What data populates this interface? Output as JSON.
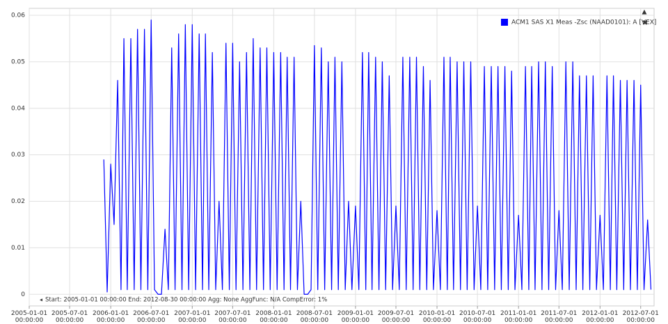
{
  "chart_data": {
    "type": "line",
    "xlim": [
      "2005-01-01 00:00:00",
      "2012-08-30 00:00:00"
    ],
    "ylim": [
      -0.0025,
      0.0615
    ],
    "yticks": [
      0,
      0.01,
      0.02,
      0.03,
      0.04,
      0.05,
      0.06
    ],
    "xticks": [
      "2005-01-01 00:00:00",
      "2005-07-01 00:00:00",
      "2006-01-01 00:00:00",
      "2006-07-01 00:00:00",
      "2007-01-01 00:00:00",
      "2007-07-01 00:00:00",
      "2008-01-01 00:00:00",
      "2008-07-01 00:00:00",
      "2009-01-01 00:00:00",
      "2009-07-01 00:00:00",
      "2010-01-01 00:00:00",
      "2010-07-01 00:00:00",
      "2011-01-01 00:00:00",
      "2011-07-01 00:00:00",
      "2012-01-01 00:00:00",
      "2012-07-01 00:00:00"
    ],
    "grid": true,
    "legend": "top-right",
    "footnote": "Start: 2005-01-01 00:00:00 End: 2012-08-30 00:00:00 Agg: None AggFunc: N/A CompError: 1%",
    "x": [
      "2005-12-01",
      "2005-12-16",
      "2006-01-01",
      "2006-01-16",
      "2006-02-01",
      "2006-02-16",
      "2006-03-01",
      "2006-03-16",
      "2006-04-01",
      "2006-04-16",
      "2006-05-01",
      "2006-05-16",
      "2006-06-01",
      "2006-06-16",
      "2006-07-01",
      "2006-07-16",
      "2006-08-01",
      "2006-08-16",
      "2006-09-01",
      "2006-09-16",
      "2006-10-01",
      "2006-10-16",
      "2006-11-01",
      "2006-11-16",
      "2006-12-01",
      "2006-12-16",
      "2007-01-01",
      "2007-01-16",
      "2007-02-01",
      "2007-02-16",
      "2007-03-01",
      "2007-03-16",
      "2007-04-01",
      "2007-04-16",
      "2007-05-01",
      "2007-05-16",
      "2007-06-01",
      "2007-06-16",
      "2007-07-01",
      "2007-07-16",
      "2007-08-01",
      "2007-08-16",
      "2007-09-01",
      "2007-09-16",
      "2007-10-01",
      "2007-10-16",
      "2007-11-01",
      "2007-11-16",
      "2007-12-01",
      "2007-12-16",
      "2008-01-01",
      "2008-01-16",
      "2008-02-01",
      "2008-02-16",
      "2008-03-01",
      "2008-03-16",
      "2008-04-01",
      "2008-04-16",
      "2008-05-01",
      "2008-05-16",
      "2008-06-01",
      "2008-06-16",
      "2008-07-01",
      "2008-07-16",
      "2008-08-01",
      "2008-08-16",
      "2008-09-01",
      "2008-09-16",
      "2008-10-01",
      "2008-10-16",
      "2008-11-01",
      "2008-11-16",
      "2008-12-01",
      "2008-12-16",
      "2009-01-01",
      "2009-01-16",
      "2009-02-01",
      "2009-02-16",
      "2009-03-01",
      "2009-03-16",
      "2009-04-01",
      "2009-04-16",
      "2009-05-01",
      "2009-05-16",
      "2009-06-01",
      "2009-06-16",
      "2009-07-01",
      "2009-07-16",
      "2009-08-01",
      "2009-08-16",
      "2009-09-01",
      "2009-09-16",
      "2009-10-01",
      "2009-10-16",
      "2009-11-01",
      "2009-11-16",
      "2009-12-01",
      "2009-12-16",
      "2010-01-01",
      "2010-01-16",
      "2010-02-01",
      "2010-02-16",
      "2010-03-01",
      "2010-03-16",
      "2010-04-01",
      "2010-04-16",
      "2010-05-01",
      "2010-05-16",
      "2010-06-01",
      "2010-06-16",
      "2010-07-01",
      "2010-07-16",
      "2010-08-01",
      "2010-08-16",
      "2010-09-01",
      "2010-09-16",
      "2010-10-01",
      "2010-10-16",
      "2010-11-01",
      "2010-11-16",
      "2010-12-01",
      "2010-12-16",
      "2011-01-01",
      "2011-01-16",
      "2011-02-01",
      "2011-02-16",
      "2011-03-01",
      "2011-03-16",
      "2011-04-01",
      "2011-04-16",
      "2011-05-01",
      "2011-05-16",
      "2011-06-01",
      "2011-06-16",
      "2011-07-01",
      "2011-07-16",
      "2011-08-01",
      "2011-08-16",
      "2011-09-01",
      "2011-09-16",
      "2011-10-01",
      "2011-10-16",
      "2011-11-01",
      "2011-11-16",
      "2011-12-01",
      "2011-12-16",
      "2012-01-01",
      "2012-01-16",
      "2012-02-01",
      "2012-02-16",
      "2012-03-01",
      "2012-03-16",
      "2012-04-01",
      "2012-04-16",
      "2012-05-01",
      "2012-05-16",
      "2012-06-01",
      "2012-06-16",
      "2012-07-01",
      "2012-07-16",
      "2012-08-01",
      "2012-08-16"
    ],
    "series": [
      {
        "name": "ACM1 SAS X1 Meas -Zsc (NAAD0101): A [VEX]",
        "color": "#0000ff",
        "values": [
          0.029,
          0.0005,
          0.028,
          0.015,
          0.046,
          0.001,
          0.055,
          0.001,
          0.055,
          0.001,
          0.057,
          0.001,
          0.057,
          0.001,
          0.059,
          0.001,
          0,
          0,
          0.014,
          0.001,
          0.053,
          0.001,
          0.056,
          0.001,
          0.058,
          0.001,
          0.058,
          0.001,
          0.056,
          0.001,
          0.056,
          0.001,
          0.052,
          0.001,
          0.02,
          0.001,
          0.054,
          0.001,
          0.054,
          0.001,
          0.05,
          0.001,
          0.052,
          0.001,
          0.055,
          0.001,
          0.053,
          0.001,
          0.053,
          0.001,
          0.052,
          0.001,
          0.052,
          0.001,
          0.051,
          0.001,
          0.051,
          0.001,
          0.02,
          0,
          0,
          0.001,
          0.0535,
          0.001,
          0.053,
          0.001,
          0.05,
          0.001,
          0.051,
          0.001,
          0.05,
          0.001,
          0.02,
          0.001,
          0.019,
          0.001,
          0.052,
          0.001,
          0.052,
          0.001,
          0.051,
          0.001,
          0.05,
          0.001,
          0.047,
          0.001,
          0.019,
          0.001,
          0.051,
          0.001,
          0.051,
          0.001,
          0.051,
          0.001,
          0.049,
          0.001,
          0.046,
          0.001,
          0.018,
          0.001,
          0.051,
          0.001,
          0.051,
          0.001,
          0.05,
          0.001,
          0.05,
          0.001,
          0.05,
          0.001,
          0.019,
          0.001,
          0.049,
          0.001,
          0.049,
          0.001,
          0.049,
          0.001,
          0.049,
          0.001,
          0.048,
          0.001,
          0.017,
          0.001,
          0.049,
          0.001,
          0.049,
          0.001,
          0.05,
          0.001,
          0.05,
          0.001,
          0.049,
          0.001,
          0.018,
          0.001,
          0.05,
          0.001,
          0.05,
          0.001,
          0.047,
          0.001,
          0.047,
          0.001,
          0.047,
          0.001,
          0.017,
          0.001,
          0.047,
          0.001,
          0.047,
          0.001,
          0.046,
          0.001,
          0.046,
          0.001,
          0.046,
          0.001,
          0.045,
          0.001,
          0.016,
          0.001
        ]
      }
    ]
  }
}
